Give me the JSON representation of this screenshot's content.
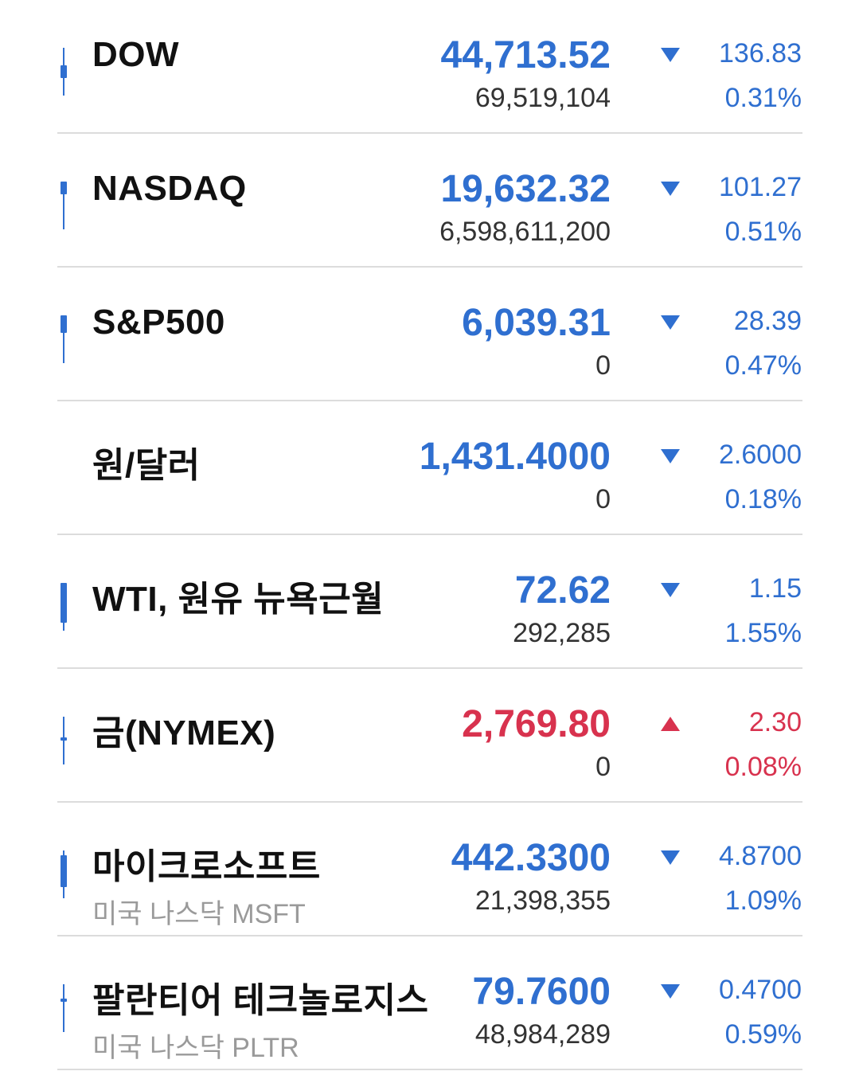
{
  "colors": {
    "down": "#2f6fd0",
    "up": "#d8324e"
  },
  "items": [
    {
      "name": "DOW",
      "sub": "",
      "price": "44,713.52",
      "volume": "69,519,104",
      "direction": "down",
      "change": "136.83",
      "pct": "0.31%",
      "candle": true
    },
    {
      "name": "NASDAQ",
      "sub": "",
      "price": "19,632.32",
      "volume": "6,598,611,200",
      "direction": "down",
      "change": "101.27",
      "pct": "0.51%",
      "candle": true
    },
    {
      "name": "S&P500",
      "sub": "",
      "price": "6,039.31",
      "volume": "0",
      "direction": "down",
      "change": "28.39",
      "pct": "0.47%",
      "candle": true
    },
    {
      "name": "원/달러",
      "sub": "",
      "price": "1,431.4000",
      "volume": "0",
      "direction": "down",
      "change": "2.6000",
      "pct": "0.18%",
      "candle": false
    },
    {
      "name": "WTI, 원유 뉴욕근월",
      "sub": "",
      "price": "72.62",
      "volume": "292,285",
      "direction": "down",
      "change": "1.15",
      "pct": "1.55%",
      "candle": true
    },
    {
      "name": "금(NYMEX)",
      "sub": "",
      "price": "2,769.80",
      "volume": "0",
      "direction": "up",
      "change": "2.30",
      "pct": "0.08%",
      "candle": true
    },
    {
      "name": "마이크로소프트",
      "sub": "미국 나스닥 MSFT",
      "price": "442.3300",
      "volume": "21,398,355",
      "direction": "down",
      "change": "4.8700",
      "pct": "1.09%",
      "candle": true
    },
    {
      "name": "팔란티어 테크놀로지스",
      "sub": "미국 나스닥 PLTR",
      "price": "79.7600",
      "volume": "48,984,289",
      "direction": "down",
      "change": "0.4700",
      "pct": "0.59%",
      "candle": true
    }
  ]
}
